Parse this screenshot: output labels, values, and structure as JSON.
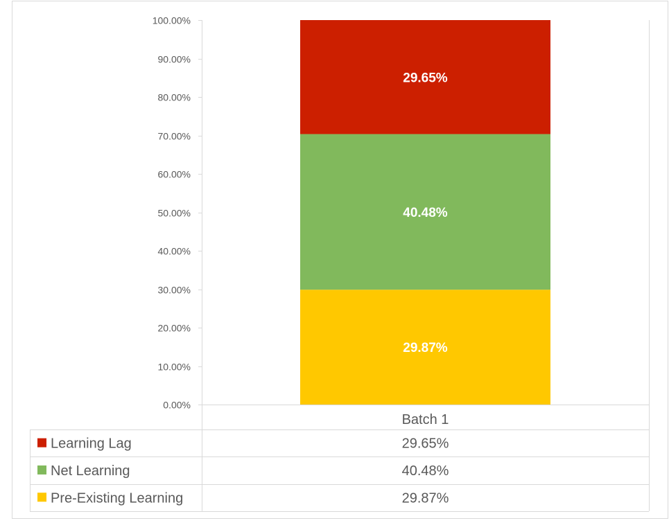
{
  "chart_data": {
    "type": "bar",
    "stacked": true,
    "categories": [
      "Batch 1"
    ],
    "series": [
      {
        "name": "Pre-Existing Learning",
        "values": [
          29.87
        ],
        "label": "29.87%",
        "color": "#FFC800"
      },
      {
        "name": "Net Learning",
        "values": [
          40.48
        ],
        "label": "40.48%",
        "color": "#81B95C"
      },
      {
        "name": "Learning Lag",
        "values": [
          29.65
        ],
        "label": "29.65%",
        "color": "#CC1F00"
      }
    ],
    "yticks": [
      "0.00%",
      "10.00%",
      "20.00%",
      "30.00%",
      "40.00%",
      "50.00%",
      "60.00%",
      "70.00%",
      "80.00%",
      "90.00%",
      "100.00%"
    ],
    "ylim": [
      0,
      100
    ],
    "grid": false,
    "legend": "data-table",
    "data_table": [
      {
        "name": "Learning Lag",
        "value": "29.65%",
        "color": "#CC1F00"
      },
      {
        "name": "Net Learning",
        "value": "40.48%",
        "color": "#81B95C"
      },
      {
        "name": "Pre-Existing Learning",
        "value": "29.87%",
        "color": "#FFC800"
      }
    ]
  }
}
